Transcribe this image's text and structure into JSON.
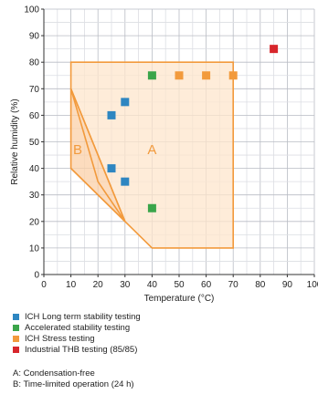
{
  "chart_data": {
    "type": "scatter",
    "xlabel": "Temperature (°C)",
    "ylabel": "Relative humidity (%)",
    "xlim": [
      0,
      100
    ],
    "ylim": [
      0,
      100
    ],
    "xticks": [
      0,
      10,
      20,
      30,
      40,
      50,
      60,
      70,
      80,
      90,
      100
    ],
    "yticks": [
      0,
      10,
      20,
      30,
      40,
      50,
      60,
      70,
      80,
      90,
      100
    ],
    "grid": true,
    "legend_position": "bottom",
    "regions": [
      {
        "label": "A",
        "polygon": [
          [
            10,
            70
          ],
          [
            30,
            20
          ],
          [
            40,
            10
          ],
          [
            70,
            10
          ],
          [
            70,
            80
          ],
          [
            10,
            80
          ]
        ],
        "fill": "#fde5cc",
        "stroke": "#f29a3c",
        "label_at": [
          40,
          47
        ]
      },
      {
        "label": "B",
        "polygon": [
          [
            10,
            70
          ],
          [
            10,
            40
          ],
          [
            30,
            20
          ]
        ],
        "fill": "#fbd0a8",
        "stroke": "#f29a3c",
        "label_at": [
          12.5,
          47
        ]
      }
    ],
    "inner_boundary": [
      [
        10,
        40
      ],
      [
        20,
        30
      ],
      [
        30,
        20
      ]
    ],
    "inner_boundary_2": [
      [
        10,
        70
      ],
      [
        20,
        35
      ],
      [
        30,
        20
      ]
    ],
    "series": [
      {
        "name": "ICH Long term stability testing",
        "color": "#2e86c1",
        "points": [
          [
            25,
            60
          ],
          [
            30,
            65
          ],
          [
            25,
            40
          ],
          [
            30,
            35
          ]
        ]
      },
      {
        "name": "Accelerated stability testing",
        "color": "#3aa54a",
        "points": [
          [
            40,
            75
          ],
          [
            40,
            25
          ]
        ]
      },
      {
        "name": "ICH Stress testing",
        "color": "#f29a3c",
        "points": [
          [
            50,
            75
          ],
          [
            60,
            75
          ],
          [
            70,
            75
          ]
        ]
      },
      {
        "name": "Industrial THB testing (85/85)",
        "color": "#d7262c",
        "points": [
          [
            85,
            85
          ]
        ]
      }
    ]
  },
  "notes": [
    "A: Condensation-free",
    "B: Time-limited operation (24 h)"
  ]
}
